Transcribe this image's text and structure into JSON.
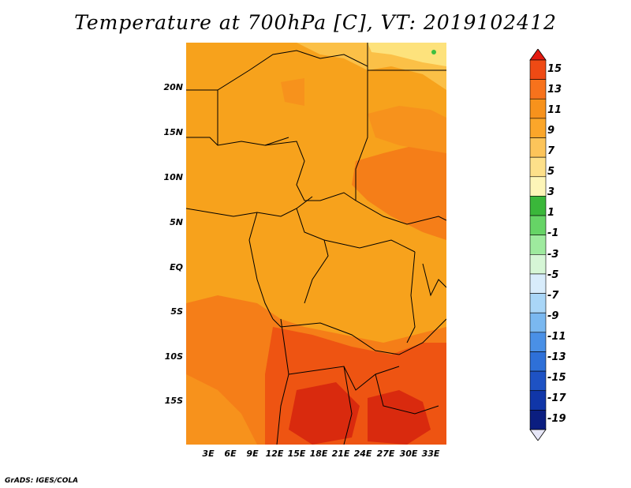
{
  "title": "Temperature at 700hPa [C], VT: 2019102412",
  "credit": "GrADS: IGES/COLA",
  "lat_labels": [
    "20N",
    "15N",
    "10N",
    "5N",
    "EQ",
    "5S",
    "10S",
    "15S"
  ],
  "lon_labels": [
    "3E",
    "6E",
    "9E",
    "12E",
    "15E",
    "18E",
    "21E",
    "24E",
    "27E",
    "30E",
    "33E"
  ],
  "colorbar": {
    "labels": [
      "15",
      "13",
      "11",
      "9",
      "7",
      "5",
      "3",
      "1",
      "-1",
      "-3",
      "-5",
      "-7",
      "-9",
      "-11",
      "-13",
      "-15",
      "-17",
      "-19"
    ],
    "colors": [
      "#e31a10",
      "#ef4a14",
      "#f7721c",
      "#f7921c",
      "#fba62a",
      "#fcc45a",
      "#fde08a",
      "#fdf5b8",
      "#3ab73a",
      "#66d466",
      "#9eea9e",
      "#d6f6d6",
      "#d8ecfb",
      "#a9d6f7",
      "#7ab8f0",
      "#4a90e6",
      "#2e70d8",
      "#1e52c4",
      "#1036a8",
      "#0b1e80",
      "#e6e6f7"
    ]
  },
  "legend_colors": {
    "t9_11": "#f7a21c",
    "t11_13": "#f57e18",
    "t13_15": "#ee5412",
    "t15_plus": "#d92a0e",
    "t7_9": "#fbc047",
    "t5_7": "#fde27c",
    "t1_3": "#3fbf3f"
  }
}
